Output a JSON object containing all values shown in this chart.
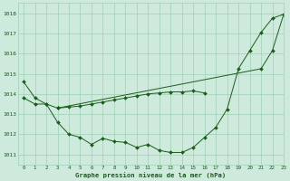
{
  "title": "Graphe pression niveau de la mer (hPa)",
  "background_color": "#ceeadc",
  "grid_color": "#9ecfb4",
  "line_color": "#1a5c1a",
  "xlim": [
    -0.5,
    23
  ],
  "ylim": [
    1010.5,
    1018.5
  ],
  "yticks": [
    1011,
    1012,
    1013,
    1014,
    1015,
    1016,
    1017,
    1018
  ],
  "xticks": [
    0,
    1,
    2,
    3,
    4,
    5,
    6,
    7,
    8,
    9,
    10,
    11,
    12,
    13,
    14,
    15,
    16,
    17,
    18,
    19,
    20,
    21,
    22,
    23
  ],
  "line1_x": [
    0,
    1,
    2,
    3,
    4,
    5,
    6,
    7,
    8,
    9,
    10,
    11,
    12,
    13,
    14,
    15,
    16,
    17,
    18,
    19,
    20,
    21,
    22,
    23
  ],
  "line1_y": [
    1014.6,
    1013.8,
    1013.5,
    1012.6,
    1012.0,
    1011.85,
    1011.5,
    1011.8,
    1011.65,
    1011.6,
    1011.35,
    1011.5,
    1011.2,
    1011.1,
    1011.1,
    1011.35,
    1011.85,
    1012.35,
    1013.25,
    1015.25,
    1016.15,
    1017.05,
    1017.75,
    1017.95
  ],
  "line2_x": [
    0,
    1,
    2,
    3,
    4,
    5,
    6,
    7,
    8,
    9,
    10,
    11,
    12,
    13,
    14,
    15,
    16
  ],
  "line2_y": [
    1013.8,
    1013.5,
    1013.5,
    1013.3,
    1013.35,
    1013.4,
    1013.5,
    1013.6,
    1013.7,
    1013.8,
    1013.9,
    1014.0,
    1014.05,
    1014.1,
    1014.1,
    1014.15,
    1014.05
  ],
  "line3_x": [
    3,
    21,
    22,
    23
  ],
  "line3_y": [
    1013.3,
    1015.25,
    1016.15,
    1017.95
  ],
  "markersize": 2.0,
  "linewidth": 0.7
}
